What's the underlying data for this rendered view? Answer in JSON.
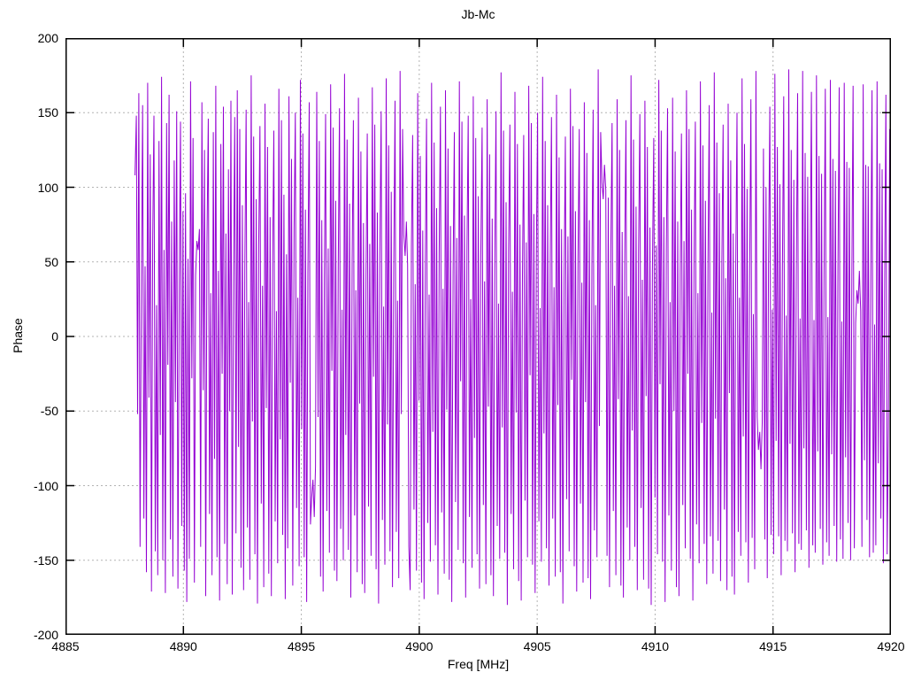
{
  "chart_data": {
    "type": "line",
    "title": "Jb-Mc",
    "xlabel": "Freq [MHz]",
    "ylabel": "Phase",
    "xlim": [
      4885,
      4920
    ],
    "ylim": [
      -200,
      200
    ],
    "xticks": [
      4885,
      4890,
      4895,
      4900,
      4905,
      4910,
      4915,
      4920
    ],
    "yticks": [
      200,
      150,
      100,
      50,
      0,
      -50,
      -100,
      -150,
      -200
    ],
    "grid": true,
    "legend": "none",
    "line_color": "#9400d3",
    "series": [
      {
        "name": "phase",
        "x_start": 4887.95,
        "x_end": 4920,
        "phase_deg": [
          108,
          148,
          -52,
          163,
          -141,
          36,
          155,
          -122,
          47,
          -158,
          170,
          -41,
          122,
          -171,
          65,
          148,
          -144,
          21,
          -160,
          131,
          -66,
          174,
          -150,
          58,
          -172,
          143,
          -19,
          162,
          -136,
          77,
          -161,
          118,
          -44,
          151,
          -169,
          33,
          144,
          -127,
          84,
          -157,
          96,
          -178,
          52,
          -149,
          171,
          -28,
          133,
          -165,
          41,
          64,
          58,
          72,
          -141,
          157,
          -36,
          125,
          -174,
          61,
          146,
          -119,
          29,
          -160,
          137,
          -82,
          168,
          -148,
          44,
          -177,
          129,
          -25,
          154,
          -139,
          69,
          -166,
          112,
          -50,
          158,
          -173,
          37,
          147,
          -132,
          165,
          -74,
          139,
          -155,
          88,
          -170,
          46,
          152,
          -128,
          23,
          -163,
          175,
          -57,
          134,
          -146,
          92,
          -179,
          61,
          141,
          -112,
          34,
          -168,
          156,
          -48,
          127,
          -159,
          80,
          -174,
          49,
          138,
          -124,
          17,
          -152,
          166,
          -69,
          145,
          -133,
          95,
          -176,
          55,
          -142,
          161,
          -31,
          119,
          -167,
          73,
          150,
          -115,
          26,
          -154,
          172,
          -62,
          136,
          -148,
          85,
          -178,
          42,
          157,
          -126,
          -108,
          -96,
          -121,
          -87,
          164,
          -54,
          131,
          -161,
          78,
          -171,
          38,
          149,
          -117,
          59,
          -145,
          169,
          -23,
          140,
          -157,
          91,
          -164,
          47,
          153,
          -129,
          18,
          -150,
          176,
          -66,
          132,
          -143,
          89,
          -175,
          51,
          145,
          -120,
          31,
          -158,
          160,
          -45,
          124,
          -166,
          76,
          -172,
          40,
          136,
          -114,
          62,
          -147,
          167,
          -27,
          142,
          -156,
          83,
          -179,
          54,
          151,
          -123,
          20,
          -153,
          173,
          -59,
          128,
          -144,
          97,
          -168,
          45,
          158,
          -131,
          24,
          -162,
          178,
          -52,
          139,
          68,
          54,
          77,
          48,
          -141,
          -170,
          60,
          135,
          -116,
          35,
          -157,
          163,
          -43,
          121,
          -165,
          71,
          -176,
          50,
          146,
          -125,
          28,
          -151,
          170,
          -64,
          130,
          -140,
          86,
          -173,
          56,
          154,
          -118,
          32,
          -159,
          165,
          -49,
          126,
          -163,
          74,
          -178,
          43,
          137,
          -111,
          66,
          -143,
          171,
          -30,
          144,
          -152,
          81,
          -175,
          58,
          148,
          -121,
          25,
          -155,
          161,
          -68,
          133,
          -146,
          94,
          -169,
          53,
          140,
          -113,
          37,
          -166,
          159,
          -47,
          122,
          -160,
          79,
          -174,
          44,
          151,
          -127,
          22,
          -149,
          177,
          -61,
          138,
          -145,
          90,
          -180,
          57,
          142,
          -119,
          30,
          -156,
          164,
          -51,
          129,
          -164,
          75,
          -177,
          41,
          135,
          -110,
          63,
          -148,
          168,
          -26,
          143,
          -153,
          82,
          -172,
          55,
          150,
          -124,
          19,
          -151,
          174,
          -65,
          131,
          -142,
          88,
          -167,
          50,
          147,
          -122,
          33,
          -161,
          162,
          -46,
          120,
          -158,
          72,
          -179,
          39,
          134,
          -109,
          67,
          -144,
          166,
          -29,
          141,
          -154,
          84,
          -171,
          52,
          139,
          -112,
          36,
          -165,
          157,
          -44,
          123,
          -162,
          78,
          -176,
          46,
          152,
          -130,
          21,
          -148,
          179,
          -60,
          137,
          103,
          92,
          115,
          98,
          -147,
          93,
          -168,
          59,
          143,
          -117,
          34,
          -160,
          159,
          -42,
          125,
          -167,
          70,
          -175,
          48,
          145,
          -128,
          27,
          -150,
          175,
          -63,
          132,
          -141,
          87,
          -170,
          56,
          149,
          -115,
          38,
          -163,
          158,
          -40,
          127,
          -169,
          73,
          -180,
          45,
          133,
          -108,
          61,
          -146,
          172,
          -32,
          138,
          -151,
          80,
          -178,
          57,
          153,
          -120,
          23,
          -157,
          160,
          -50,
          124,
          -168,
          77,
          -174,
          42,
          136,
          -113,
          64,
          -142,
          165,
          -25,
          139,
          -149,
          85,
          -177,
          53,
          144,
          -126,
          29,
          -152,
          171,
          -58,
          128,
          -139,
          91,
          -166,
          49,
          155,
          -134,
          16,
          -159,
          177,
          -55,
          130,
          -137,
          96,
          -164,
          51,
          142,
          -116,
          39,
          -170,
          156,
          -38,
          118,
          -161,
          69,
          -173,
          47,
          150,
          -131,
          26,
          -147,
          173,
          -67,
          129,
          -138,
          99,
          -165,
          44,
          159,
          -135,
          15,
          -156,
          178,
          -54,
          -76,
          -64,
          -89,
          -58,
          126,
          -136,
          100,
          -162,
          48,
          154,
          -133,
          18,
          -146,
          176,
          -70,
          127,
          -134,
          102,
          -160,
          43,
          161,
          -137,
          14,
          -144,
          179,
          -72,
          125,
          -132,
          105,
          -158,
          40,
          163,
          -139,
          12,
          -143,
          178,
          -75,
          123,
          -130,
          107,
          -155,
          45,
          164,
          -140,
          11,
          -145,
          175,
          -77,
          121,
          -129,
          109,
          -153,
          42,
          166,
          -138,
          13,
          -147,
          172,
          -79,
          119,
          -127,
          111,
          -151,
          46,
          167,
          -136,
          10,
          -149,
          170,
          -81,
          117,
          -125,
          113,
          -150,
          41,
          168,
          -142,
          9,
          31,
          22,
          44,
          17,
          -141,
          169,
          -83,
          115,
          -123,
          114,
          -148,
          39,
          165,
          -145,
          8,
          -140,
          171,
          -85,
          116,
          -122,
          112,
          -152,
          37,
          162,
          -146,
          -60,
          139,
          -104
        ]
      }
    ]
  }
}
